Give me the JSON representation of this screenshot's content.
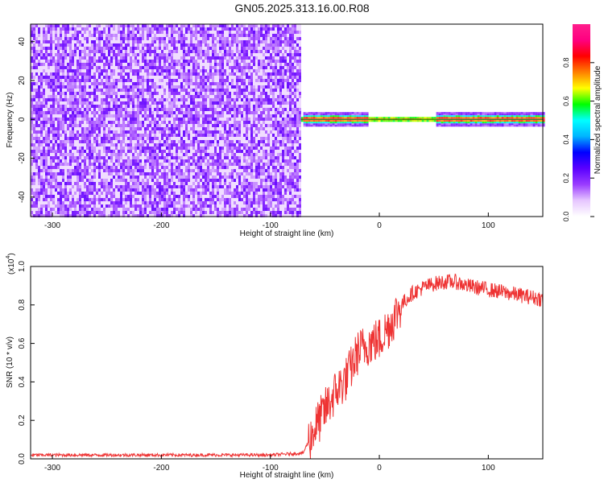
{
  "title": "GN05.2025.313.16.00.R08",
  "chart_data": [
    {
      "type": "heatmap",
      "xlabel": "Height of straight line (km)",
      "ylabel": "Frequency (Hz)",
      "xlim": [
        -320,
        150
      ],
      "ylim": [
        -50,
        49
      ],
      "x_ticks": [
        "-300",
        "-200",
        "-100",
        "0",
        "100"
      ],
      "y_ticks": [
        "-40",
        "-20",
        "0",
        "20",
        "40"
      ],
      "noise_region_x": [
        -320,
        -72
      ],
      "signal_band_hz": 0,
      "colorbar": {
        "label": "Normalized spectral amplitude",
        "range": [
          0,
          1
        ],
        "ticks": [
          "0.0",
          "0.2",
          "0.4",
          "0.6",
          "0.8"
        ],
        "colors": [
          "#ffffff",
          "#e6c6ff",
          "#9a3cff",
          "#5a00ff",
          "#0000ff",
          "#00b4ff",
          "#00ffff",
          "#00ff00",
          "#ffff00",
          "#ff8000",
          "#ff0000",
          "#ff0080",
          "#ff1e8c"
        ]
      }
    },
    {
      "type": "line",
      "xlabel": "Height of straight line (km)",
      "ylabel": "SNR (10 * v/v)",
      "y_multiplier": "(x10",
      "y_multiplier_exp": "4",
      "y_multiplier_close": ")",
      "xlim": [
        -320,
        150
      ],
      "ylim": [
        0,
        1.0
      ],
      "x_ticks": [
        "-300",
        "-200",
        "-100",
        "0",
        "100"
      ],
      "y_ticks": [
        "0.0",
        "0.2",
        "0.4",
        "0.6",
        "0.8",
        "1.0"
      ],
      "line_color": "#ee3333",
      "series": [
        {
          "x": [
            -320,
            -200,
            -100,
            -70,
            -60,
            -50,
            -40,
            -30,
            -20,
            -10,
            0,
            10,
            20,
            30,
            40,
            50,
            60,
            70,
            80,
            90,
            100,
            110,
            120,
            130,
            140,
            150
          ],
          "values": [
            0.02,
            0.02,
            0.02,
            0.03,
            0.15,
            0.25,
            0.35,
            0.42,
            0.55,
            0.6,
            0.62,
            0.7,
            0.8,
            0.86,
            0.89,
            0.91,
            0.92,
            0.92,
            0.9,
            0.89,
            0.88,
            0.87,
            0.86,
            0.85,
            0.84,
            0.83
          ]
        }
      ]
    }
  ]
}
